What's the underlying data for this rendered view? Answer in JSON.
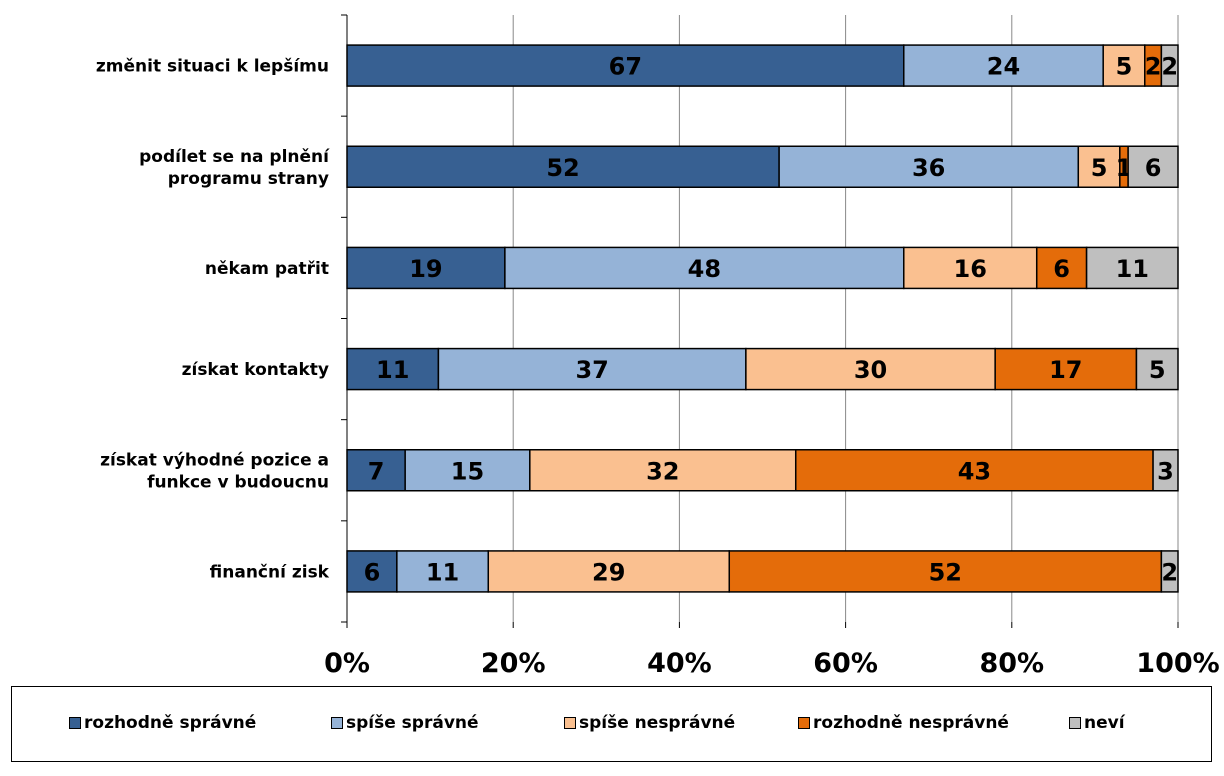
{
  "chart_data": {
    "type": "bar",
    "orientation": "horizontal",
    "stacked": "percent",
    "categories": [
      "změnit situaci k lepšímu",
      "podílet se na plnění programu strany",
      "někam patřit",
      "získat kontakty",
      "získat výhodné pozice a funkce v budoucnu",
      "finanční zisk"
    ],
    "category_lines": [
      [
        "změnit situaci k lepšímu"
      ],
      [
        "podílet se na plnění",
        "programu strany"
      ],
      [
        "někam patřit"
      ],
      [
        "získat kontakty"
      ],
      [
        "získat výhodné pozice a",
        "funkce v budoucnu"
      ],
      [
        "finanční zisk"
      ]
    ],
    "series": [
      {
        "name": "rozhodně správné",
        "color": "#376092",
        "values": [
          67,
          52,
          19,
          11,
          7,
          6
        ]
      },
      {
        "name": "spíše správné",
        "color": "#95B3D7",
        "values": [
          24,
          36,
          48,
          37,
          15,
          11
        ]
      },
      {
        "name": "spíše nesprávné",
        "color": "#FAC090",
        "values": [
          5,
          5,
          16,
          30,
          32,
          29
        ]
      },
      {
        "name": "rozhodně nesprávné",
        "color": "#E46C0A",
        "values": [
          2,
          1,
          6,
          17,
          43,
          52
        ]
      },
      {
        "name": "neví",
        "color": "#BFBFBF",
        "values": [
          2,
          6,
          11,
          5,
          3,
          2
        ]
      }
    ],
    "xaxis": {
      "ticks": [
        "0%",
        "20%",
        "40%",
        "60%",
        "80%",
        "100%"
      ],
      "range": [
        0,
        100
      ]
    },
    "grid": true,
    "legend_position": "bottom"
  }
}
